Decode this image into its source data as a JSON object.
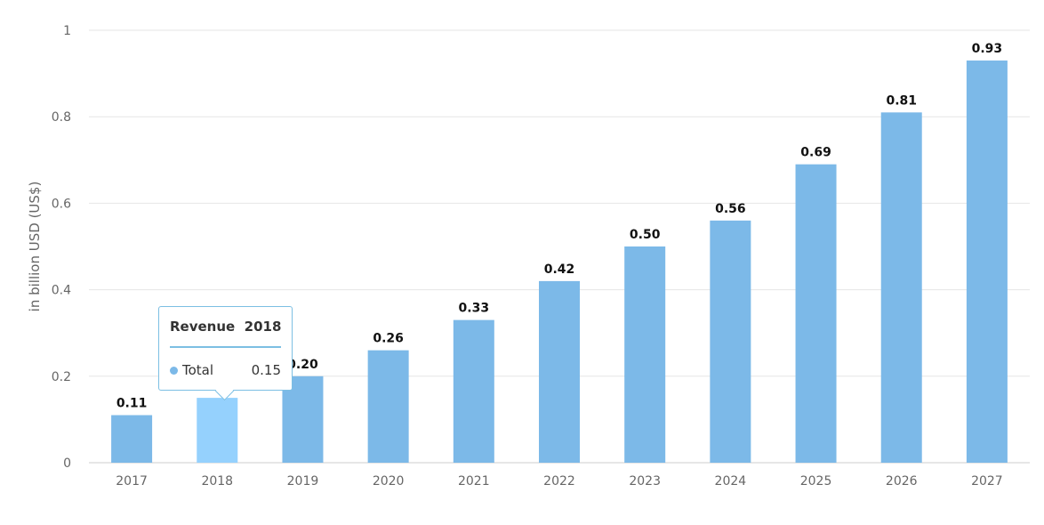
{
  "chart_data": {
    "type": "bar",
    "ylabel": "in billion USD (US$)",
    "categories": [
      "2017",
      "2018",
      "2019",
      "2020",
      "2021",
      "2022",
      "2023",
      "2024",
      "2025",
      "2026",
      "2027"
    ],
    "values": [
      0.11,
      0.15,
      0.2,
      0.26,
      0.33,
      0.42,
      0.5,
      0.56,
      0.69,
      0.81,
      0.93
    ],
    "data_labels": [
      "0.11",
      "",
      "0.20",
      "0.26",
      "0.33",
      "0.42",
      "0.50",
      "0.56",
      "0.69",
      "0.81",
      "0.93"
    ],
    "ylim": [
      0,
      1
    ],
    "yticks": [
      0,
      0.2,
      0.4,
      0.6,
      0.8,
      1
    ],
    "ytick_labels": [
      "0",
      "0.2",
      "0.4",
      "0.6",
      "0.8",
      "1"
    ],
    "grid": true,
    "highlighted_category": "2018",
    "colors": {
      "bar": "#7cb9e8",
      "bar_highlight": "#95d1fd",
      "grid": "#e6e6e6",
      "axis_text": "#666666",
      "label_text": "#111111"
    }
  },
  "tooltip": {
    "title_main": "Revenue",
    "title_year": "2018",
    "series_name": "Total",
    "value": "0.15",
    "dot_color": "#7cb9e8"
  }
}
